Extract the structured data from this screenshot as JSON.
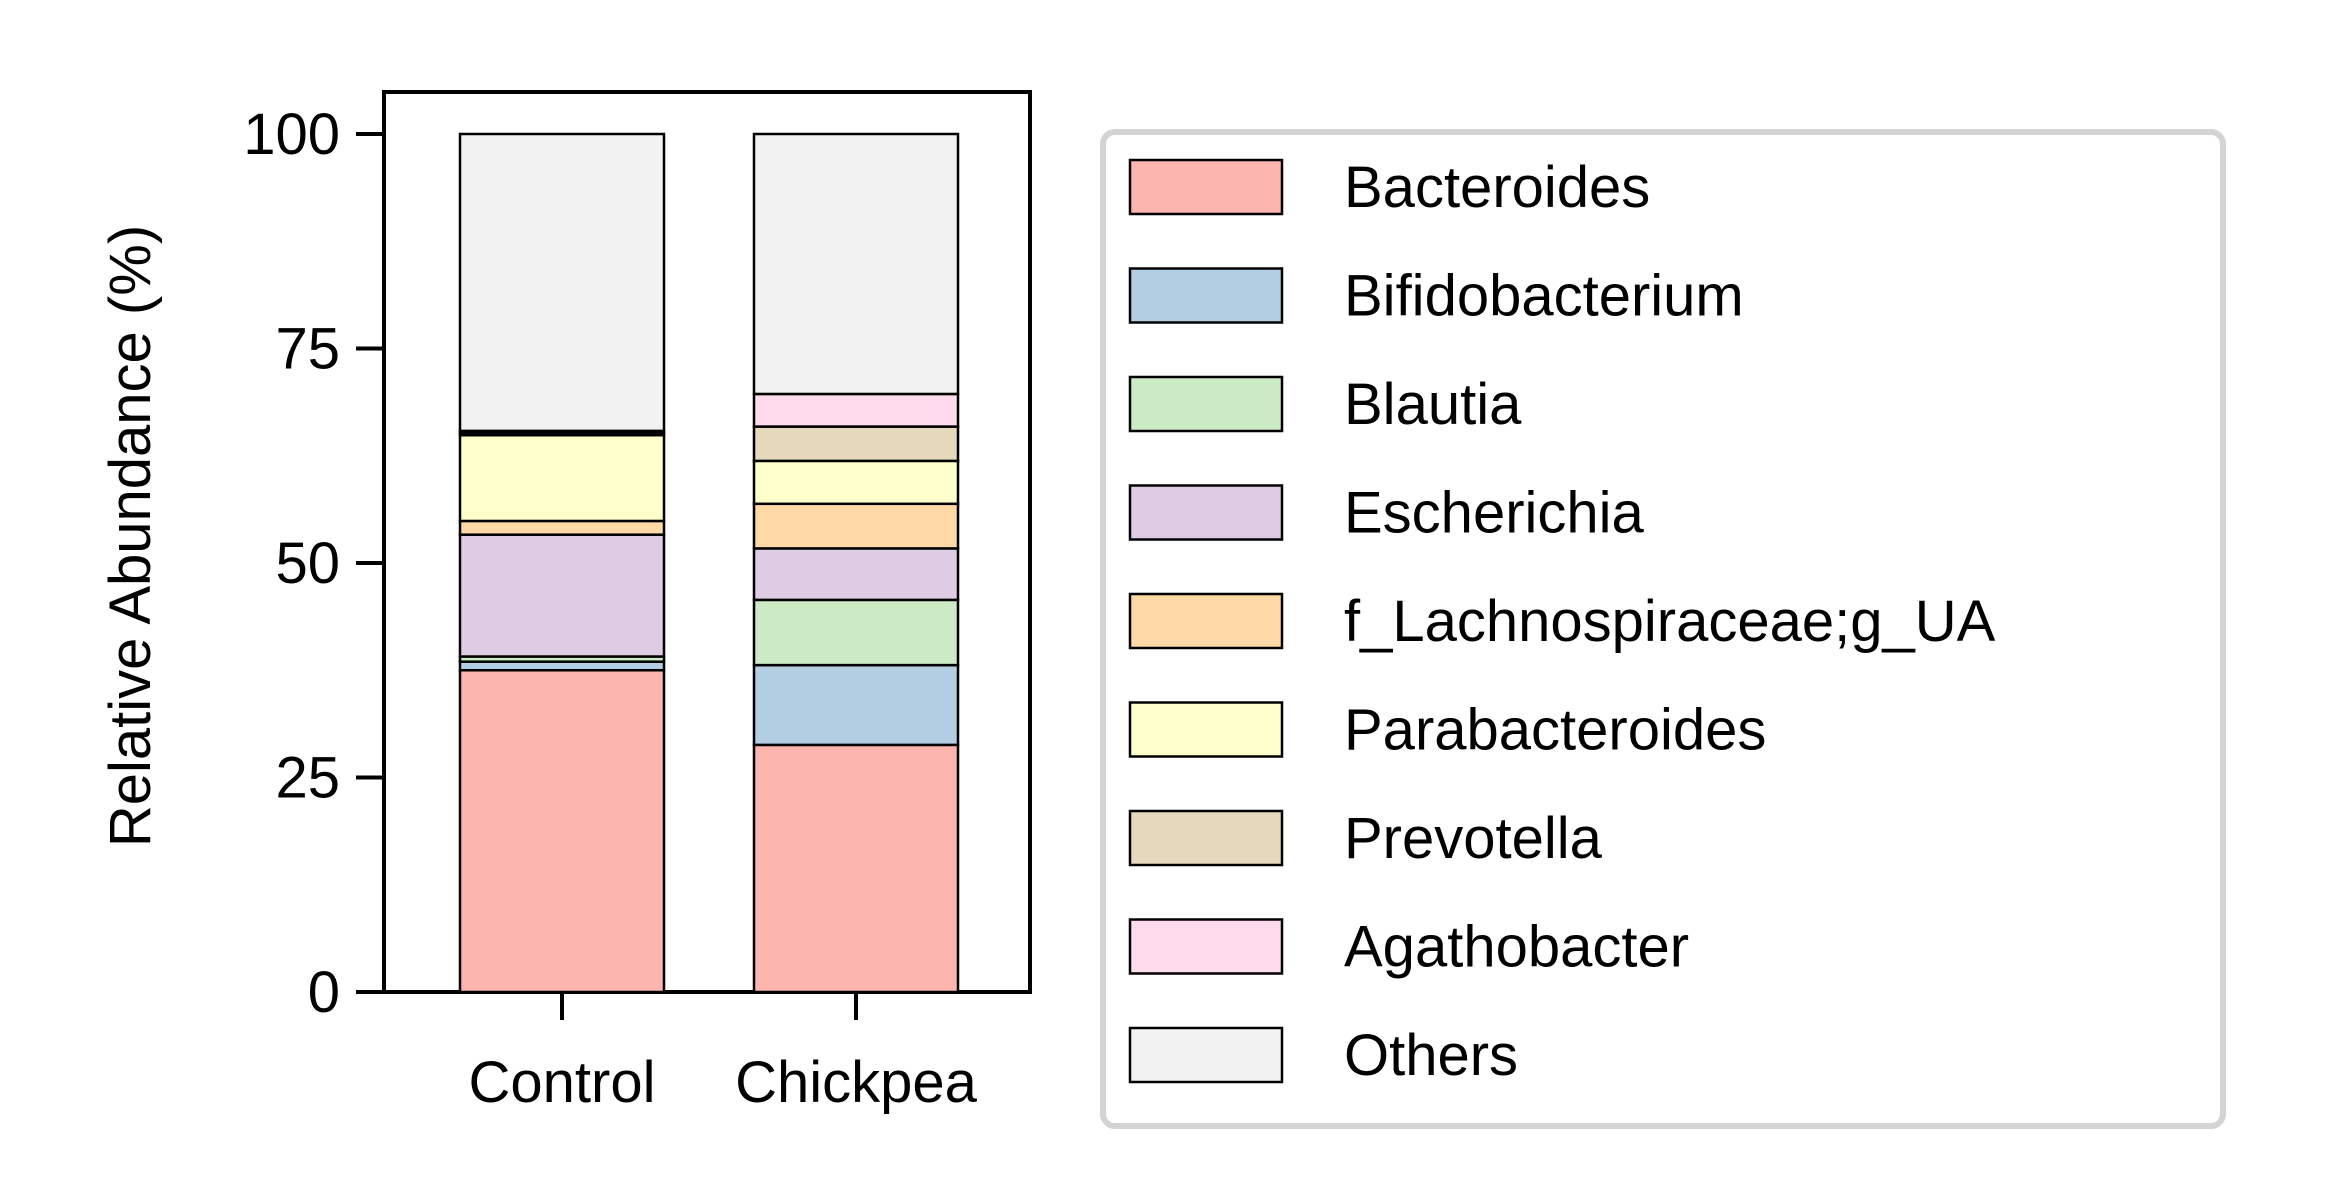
{
  "chart_data": {
    "type": "bar",
    "stacked": true,
    "categories": [
      "Control",
      "Chickpea"
    ],
    "ylabel": "Relative Abundance (%)",
    "xlabel": "",
    "title": "",
    "ylim": [
      0,
      100
    ],
    "yticks": [
      0,
      25,
      50,
      75,
      100
    ],
    "legend_position": "right",
    "grid": false,
    "series": [
      {
        "name": "Bacteroides",
        "color": "#fbb4ae",
        "values": [
          37.5,
          28.8
        ]
      },
      {
        "name": "Bifidobacterium",
        "color": "#b3cde3",
        "values": [
          1.0,
          9.3
        ]
      },
      {
        "name": "Blautia",
        "color": "#ccebc5",
        "values": [
          0.6,
          7.6
        ]
      },
      {
        "name": "Escherichia",
        "color": "#decbe4",
        "values": [
          14.2,
          6.0
        ]
      },
      {
        "name": "f_Lachnospiraceae;g_UA",
        "color": "#fed9a6",
        "values": [
          1.6,
          5.2
        ]
      },
      {
        "name": "Parabacteroides",
        "color": "#ffffcc",
        "values": [
          10.0,
          5.0
        ]
      },
      {
        "name": "Prevotella",
        "color": "#e5d8bd",
        "values": [
          0.3,
          4.0
        ]
      },
      {
        "name": "Agathobacter",
        "color": "#fddaec",
        "values": [
          0.2,
          3.8
        ]
      },
      {
        "name": "Others",
        "color": "#f2f2f2",
        "values": [
          34.6,
          30.3
        ]
      }
    ]
  }
}
